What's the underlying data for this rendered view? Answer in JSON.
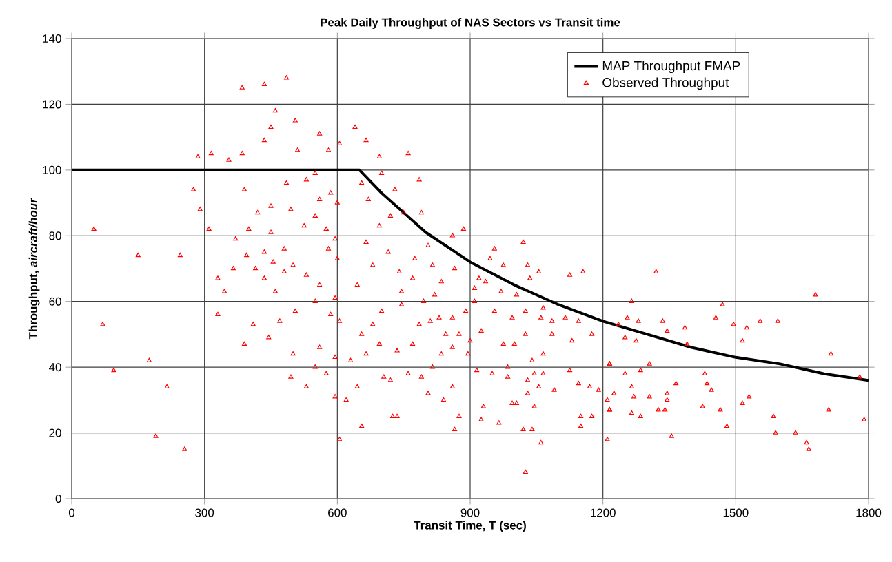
{
  "chart_data": {
    "type": "scatter",
    "title": "Peak Daily Throughput of NAS Sectors vs Transit time",
    "xlabel": "Transit Time, T (sec)",
    "ylabel": "Throughput, *aircraft/hour*",
    "xlim": [
      0,
      1800
    ],
    "xticks": [
      0,
      300,
      600,
      900,
      1200,
      1500,
      1800
    ],
    "ylim": [
      0,
      140
    ],
    "yticks": [
      0,
      20,
      40,
      60,
      80,
      100,
      120,
      140
    ],
    "grid": true,
    "legend": "top right",
    "series": [
      {
        "name": "MAP Throughput FMAP",
        "type": "line",
        "color": "#000000",
        "marker": "none",
        "x": [
          0,
          650,
          700,
          750,
          800,
          900,
          1000,
          1100,
          1200,
          1300,
          1400,
          1500,
          1600,
          1700,
          1800
        ],
        "values": [
          100,
          100,
          93,
          87,
          81,
          72,
          65,
          59,
          54,
          50,
          46,
          43,
          41,
          38,
          36
        ]
      },
      {
        "name": "Observed Throughput",
        "type": "scatter",
        "color": "#ff0000",
        "marker": "triangle",
        "x": [
          50,
          150,
          245,
          70,
          95,
          175,
          215,
          190,
          255,
          285,
          275,
          290,
          310,
          315,
          355,
          385,
          435,
          485,
          460,
          450,
          505,
          435,
          385,
          330,
          345,
          330,
          390,
          410,
          445,
          495,
          500,
          530,
          595,
          620,
          605,
          390,
          420,
          400,
          370,
          395,
          365,
          415,
          435,
          455,
          450,
          450,
          480,
          435,
          460,
          480,
          505,
          470,
          500,
          530,
          560,
          550,
          585,
          560,
          550,
          575,
          550,
          525,
          495,
          485,
          530,
          560,
          585,
          560,
          510,
          605,
          580,
          550,
          600,
          575,
          595,
          580,
          600,
          595,
          605,
          595,
          640,
          665,
          760,
          695,
          785,
          730,
          750,
          790,
          720,
          885,
          860,
          805,
          1020,
          955,
          945,
          975,
          1030,
          1055,
          1155,
          1125,
          1035,
          920,
          935,
          970,
          1005,
          910,
          910,
          955,
          995,
          1025,
          1065,
          1060,
          1115,
          1145,
          1085,
          1175,
          1130,
          1085,
          1025,
          1000,
          975,
          925,
          900,
          895,
          875,
          845,
          860,
          830,
          810,
          890,
          860,
          835,
          915,
          950,
          985,
          985,
          1040,
          1065,
          1065,
          1045,
          1030,
          1055,
          1030,
          1090,
          1125,
          1145,
          1170,
          1190,
          1215,
          1210,
          1215,
          1175,
          1150,
          1150,
          1210,
          995,
          1005,
          1045,
          1020,
          1040,
          1060,
          1025,
          965,
          925,
          930,
          865,
          875,
          840,
          805,
          860,
          790,
          720,
          705,
          725,
          735,
          655,
          645,
          815,
          760,
          770,
          735,
          695,
          665,
          655,
          700,
          745,
          795,
          785,
          770,
          745,
          820,
          835,
          865,
          815,
          775,
          740,
          715,
          680,
          645,
          665,
          695,
          670,
          655,
          700,
          680,
          630,
          1320,
          1265,
          1255,
          1280,
          1235,
          1250,
          1275,
          1335,
          1345,
          1385,
          1390,
          1470,
          1455,
          1495,
          1525,
          1515,
          1555,
          1595,
          1680,
          1715,
          1780,
          1215,
          1305,
          1285,
          1250,
          1225,
          1265,
          1270,
          1215,
          1265,
          1285,
          1305,
          1325,
          1340,
          1345,
          1345,
          1365,
          1355,
          1430,
          1435,
          1445,
          1425,
          1465,
          1480,
          1515,
          1530,
          1585,
          1590,
          1635,
          1660,
          1665,
          1710,
          1790
        ],
        "values": [
          82,
          74,
          74,
          53,
          39,
          42,
          34,
          19,
          15,
          104,
          94,
          88,
          82,
          105,
          103,
          125,
          126,
          128,
          118,
          113,
          115,
          109,
          105,
          67,
          63,
          56,
          47,
          53,
          49,
          37,
          44,
          34,
          31,
          30,
          18,
          94,
          87,
          82,
          79,
          74,
          70,
          70,
          75,
          72,
          81,
          89,
          76,
          67,
          63,
          69,
          57,
          54,
          71,
          68,
          65,
          60,
          56,
          46,
          40,
          38,
          86,
          83,
          88,
          96,
          97,
          91,
          93,
          111,
          106,
          108,
          106,
          99,
          90,
          82,
          79,
          76,
          73,
          61,
          54,
          43,
          113,
          109,
          105,
          104,
          97,
          94,
          87,
          87,
          86,
          82,
          80,
          77,
          78,
          76,
          73,
          71,
          71,
          69,
          69,
          68,
          67,
          67,
          66,
          63,
          62,
          64,
          60,
          57,
          55,
          57,
          58,
          55,
          55,
          54,
          54,
          50,
          48,
          50,
          50,
          47,
          47,
          51,
          48,
          44,
          50,
          50,
          55,
          55,
          54,
          57,
          46,
          44,
          39,
          38,
          40,
          37,
          42,
          44,
          38,
          38,
          36,
          34,
          32,
          33,
          39,
          35,
          34,
          33,
          41,
          30,
          27,
          25,
          25,
          22,
          18,
          29,
          29,
          28,
          21,
          21,
          17,
          8,
          23,
          24,
          28,
          21,
          25,
          30,
          32,
          34,
          37,
          36,
          37,
          25,
          25,
          22,
          34,
          40,
          38,
          47,
          45,
          47,
          44,
          50,
          57,
          59,
          60,
          53,
          67,
          63,
          62,
          66,
          70,
          71,
          73,
          69,
          75,
          71,
          65,
          78,
          83,
          91,
          96,
          99,
          53,
          42,
          69,
          60,
          55,
          54,
          53,
          49,
          48,
          54,
          51,
          52,
          47,
          59,
          55,
          53,
          52,
          48,
          54,
          54,
          62,
          44,
          37,
          41,
          41,
          39,
          38,
          32,
          34,
          31,
          27,
          26,
          25,
          31,
          27,
          27,
          30,
          32,
          35,
          19,
          38,
          35,
          33,
          28,
          27,
          22,
          29,
          31,
          25,
          20,
          20,
          17,
          15,
          27,
          24
        ]
      }
    ]
  }
}
